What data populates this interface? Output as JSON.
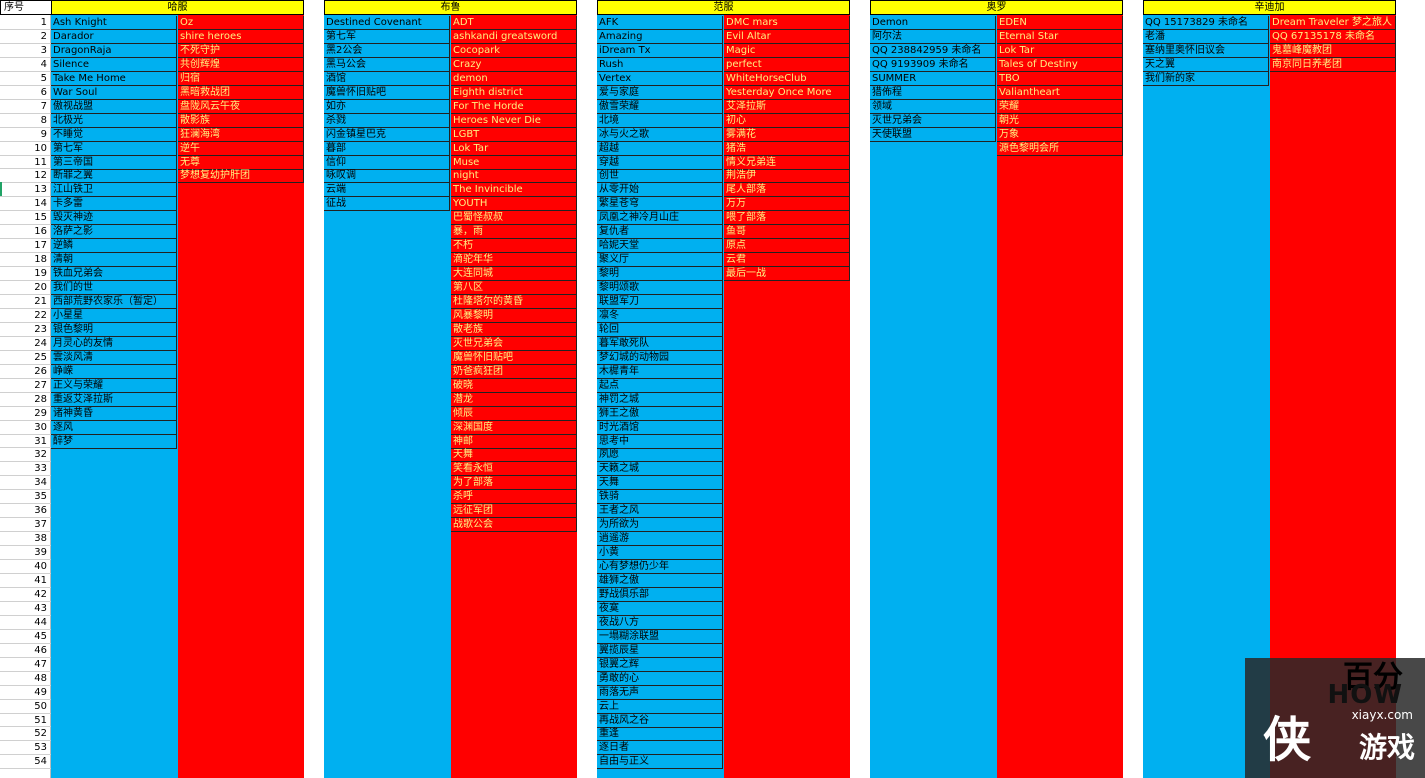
{
  "sheet": {
    "num_header": "序号",
    "servers": [
      {
        "name": "哈服",
        "left": [
          "Ash Knight",
          "Darador",
          "DragonRaja",
          "Silence",
          "Take Me Home",
          "War Soul",
          "傲视战盟",
          "北极光",
          "不睡觉",
          "第七军",
          "第三帝国",
          "断罪之翼",
          "江山铁卫",
          "卡多雷",
          "毁灭神迹",
          "洛萨之影",
          "逆鳞",
          "清朝",
          "铁血兄弟会",
          "我们的世",
          "西部荒野农家乐（暂定）",
          "小星星",
          "银色黎明",
          "月灵心的友情",
          "雲淡风清",
          "峥嵘",
          "正义与荣耀",
          "重返艾泽拉斯",
          "诸神黄昏",
          "逐风",
          "醉梦"
        ],
        "right": [
          "Oz",
          "shire heroes",
          "不死守护",
          "共创辉煌",
          "归宿",
          "黑暗救战团",
          "盘陇风云午夜",
          "散影族",
          "狂澜海湾",
          "逆午",
          "无尊",
          "梦想复幼护肝团"
        ]
      },
      {
        "name": "布鲁",
        "left": [
          "Destined Covenant",
          "第七军",
          "黑2公会",
          "黑马公会",
          "酒馆",
          "魔兽怀旧贴吧",
          "如亦",
          "杀戮",
          "闪金镇星巴克",
          "暮部",
          "信仰",
          "咏叹调",
          "云端",
          "征战"
        ],
        "right": [
          "ADT",
          "ashkandi greatsword",
          "Cocopark",
          "Crazy",
          "demon",
          "Eighth district",
          "For The Horde",
          "Heroes Never Die",
          "LGBT",
          "Lok Tar",
          "Muse",
          "night",
          "The Invincible",
          "YOUTH",
          "巴蜀怪叔叔",
          "暴，雨",
          "不朽",
          "滴驼年华",
          "大连同城",
          "第八区",
          "杜隆塔尔的黄昏",
          "风暴黎明",
          "散老族",
          "灭世兄弟会",
          "魔兽怀旧贴吧",
          "奶爸疯狂团",
          "破晓",
          "潜龙",
          "倾辰",
          "深渊国度",
          "神邮",
          "天舞",
          "笑看永恒",
          "为了部落",
          "杀呼",
          "远征军团",
          "战歌公会"
        ]
      },
      {
        "name": "范服",
        "left": [
          "AFK",
          "Amazing",
          "iDream Tx",
          "Rush",
          "Vertex",
          "爱与家庭",
          "傲雪荣耀",
          "北境",
          "冰与火之歌",
          "超越",
          "穿越",
          "创世",
          "从零开始",
          "繁星苍穹",
          "凤凰之神冷月山庄",
          "复仇者",
          "哈妮天堂",
          "聚义厅",
          "黎明",
          "黎明颂歌",
          "联盟军刀",
          "凛冬",
          "轮回",
          "暮军敢死队",
          "梦幻城的动物园",
          "木樨青年",
          "起点",
          "神罚之城",
          "狮王之傲",
          "时光酒馆",
          "思考中",
          "夙愿",
          "天籁之城",
          "天舞",
          "铁骑",
          "王者之风",
          "为所欲为",
          "逍遥游",
          "小黄",
          "心有梦想仍少年",
          "雄狮之傲",
          "野战俱乐部",
          "夜寞",
          "夜战八方",
          "一塌糊涂联盟",
          "翼揽辰星",
          "银翼之辉",
          "勇敢的心",
          "雨落无声",
          "云上",
          "再战风之谷",
          "重逢",
          "逐日者",
          "自由与正义"
        ],
        "right": [
          "DMC mars",
          "Evil Altar",
          "Magic",
          "perfect",
          "WhiteHorseClub",
          "Yesterday Once More",
          "艾泽拉斯",
          "初心",
          "雾满花",
          "猪浩",
          "情义兄弟连",
          "荆浩伊",
          "尾人部落",
          "万万",
          "喂了部落",
          "鱼哥",
          "原点",
          "云君",
          "最后一战"
        ]
      },
      {
        "name": "奥罗",
        "left": [
          "Demon",
          "阿尔法",
          "QQ 238842959 未命名",
          "QQ 9193909 未命名",
          "SUMMER",
          "猎佈程",
          "领域",
          "灭世兄弟会",
          "天使联盟"
        ],
        "right": [
          "EDEN",
          "Eternal Star",
          "Lok Tar",
          "Tales of Destiny",
          "TBO",
          "Valiantheart",
          "荣耀",
          "朝光",
          "万象",
          "源色黎明会所"
        ]
      },
      {
        "name": "辛迪加",
        "left": [
          "QQ 15173829 未命名",
          "老潘",
          "塞纳里奥怀旧议会",
          "天之翼",
          "我们新的家"
        ],
        "right": [
          "Dream Traveler 梦之旅人",
          "QQ 67135178 未命名",
          "鬼墓峰魔教团",
          "南京同日养老团"
        ]
      }
    ],
    "row_count": 54
  },
  "watermark": {
    "big": "百分",
    "how": "HOW",
    "site": "xiayx.com",
    "xia": "侠",
    "game": "游戏"
  },
  "colors": {
    "blue": "#00b0f0",
    "red": "#ff0000",
    "header": "#ffff00"
  }
}
